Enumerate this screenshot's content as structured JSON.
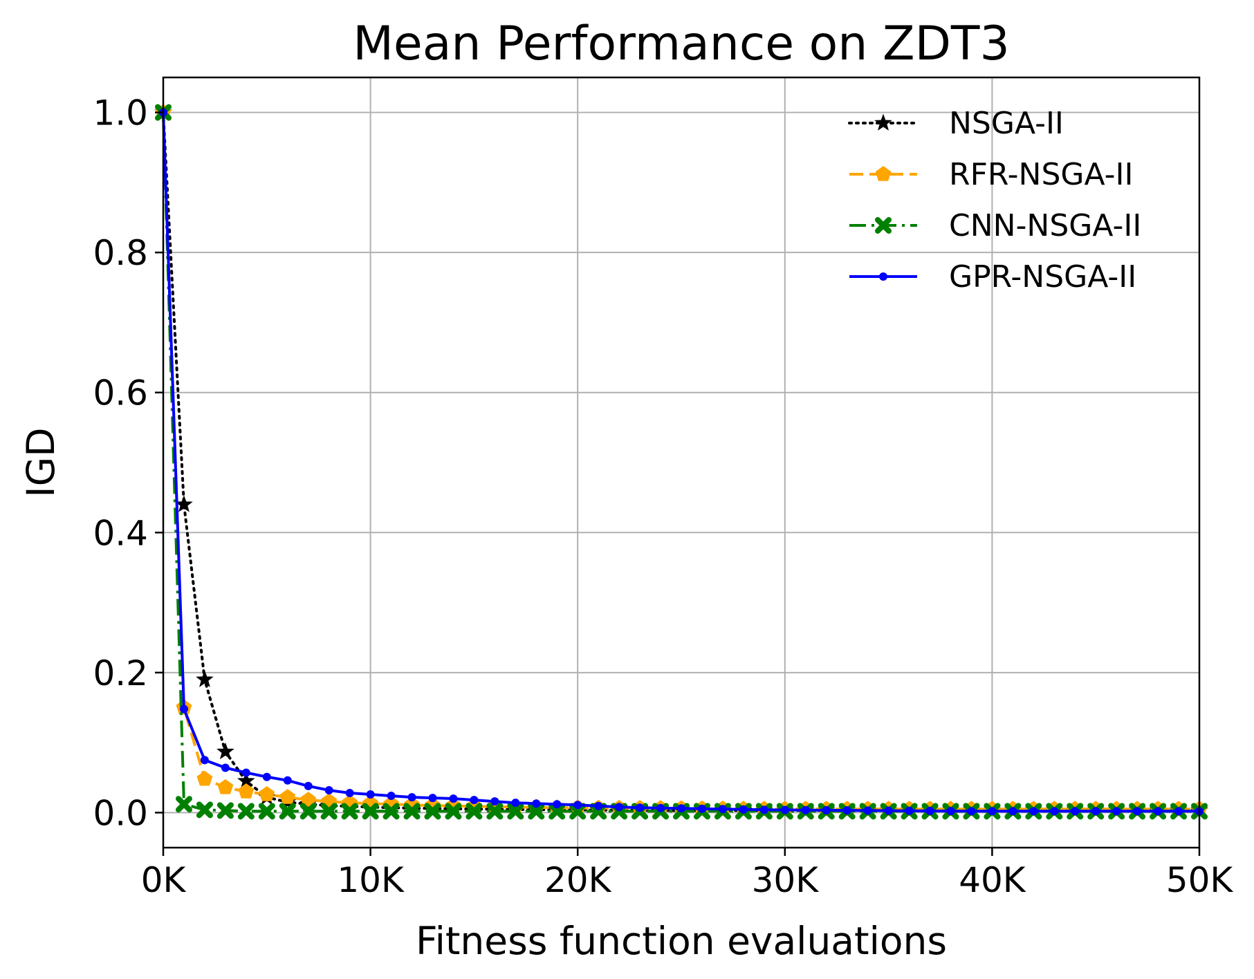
{
  "chart_data": {
    "type": "line",
    "title": "Mean Performance on ZDT3",
    "xlabel": "Fitness function evaluations",
    "ylabel": "IGD",
    "xlim": [
      0,
      50000
    ],
    "ylim": [
      -0.05,
      1.05
    ],
    "xticks": [
      0,
      10000,
      20000,
      30000,
      40000,
      50000
    ],
    "xtick_labels": [
      "0K",
      "10K",
      "20K",
      "30K",
      "40K",
      "50K"
    ],
    "yticks": [
      0.0,
      0.2,
      0.4,
      0.6,
      0.8,
      1.0
    ],
    "ytick_labels": [
      "0.0",
      "0.2",
      "0.4",
      "0.6",
      "0.8",
      "1.0"
    ],
    "grid": true,
    "legend_position": "top-right",
    "x": [
      0,
      1000,
      2000,
      3000,
      4000,
      5000,
      6000,
      7000,
      8000,
      9000,
      10000,
      11000,
      12000,
      13000,
      14000,
      15000,
      16000,
      17000,
      18000,
      19000,
      20000,
      21000,
      22000,
      23000,
      24000,
      25000,
      26000,
      27000,
      28000,
      29000,
      30000,
      31000,
      32000,
      33000,
      34000,
      35000,
      36000,
      37000,
      38000,
      39000,
      40000,
      41000,
      42000,
      43000,
      44000,
      45000,
      46000,
      47000,
      48000,
      49000,
      50000
    ],
    "series": [
      {
        "name": "NSGA-II",
        "color": "#000000",
        "line_style": "dotted",
        "marker": "star",
        "values": [
          1.0,
          0.44,
          0.19,
          0.087,
          0.045,
          0.022,
          0.015,
          0.012,
          0.01,
          0.009,
          0.008,
          0.007,
          0.0065,
          0.006,
          0.0055,
          0.005,
          0.0048,
          0.0045,
          0.0043,
          0.004,
          0.0038,
          0.0036,
          0.0035,
          0.0033,
          0.0032,
          0.003,
          0.003,
          0.003,
          0.003,
          0.003,
          0.003,
          0.003,
          0.003,
          0.003,
          0.003,
          0.003,
          0.003,
          0.003,
          0.003,
          0.003,
          0.003,
          0.003,
          0.003,
          0.003,
          0.003,
          0.003,
          0.003,
          0.003,
          0.003,
          0.003,
          0.003
        ]
      },
      {
        "name": "RFR-NSGA-II",
        "color": "#FFA500",
        "line_style": "dashed",
        "marker": "pentagon",
        "values": [
          1.0,
          0.15,
          0.048,
          0.036,
          0.03,
          0.026,
          0.022,
          0.018,
          0.016,
          0.014,
          0.013,
          0.012,
          0.011,
          0.01,
          0.0095,
          0.009,
          0.0085,
          0.008,
          0.0075,
          0.007,
          0.0068,
          0.0066,
          0.0064,
          0.0062,
          0.006,
          0.0058,
          0.0056,
          0.0054,
          0.0052,
          0.005,
          0.005,
          0.005,
          0.005,
          0.005,
          0.005,
          0.005,
          0.005,
          0.005,
          0.005,
          0.005,
          0.005,
          0.005,
          0.005,
          0.005,
          0.005,
          0.005,
          0.005,
          0.005,
          0.005,
          0.005,
          0.005
        ]
      },
      {
        "name": "CNN-NSGA-II",
        "color": "#008000",
        "line_style": "dashdot",
        "marker": "x-filled",
        "values": [
          1.0,
          0.012,
          0.004,
          0.003,
          0.002,
          0.002,
          0.002,
          0.002,
          0.002,
          0.002,
          0.002,
          0.002,
          0.002,
          0.002,
          0.002,
          0.002,
          0.002,
          0.002,
          0.002,
          0.002,
          0.002,
          0.002,
          0.002,
          0.002,
          0.002,
          0.002,
          0.002,
          0.002,
          0.002,
          0.002,
          0.002,
          0.002,
          0.002,
          0.002,
          0.002,
          0.002,
          0.002,
          0.002,
          0.002,
          0.002,
          0.002,
          0.002,
          0.002,
          0.002,
          0.002,
          0.002,
          0.002,
          0.002,
          0.002,
          0.002,
          0.002
        ]
      },
      {
        "name": "GPR-NSGA-II",
        "color": "#0000FF",
        "line_style": "solid",
        "marker": "dot",
        "values": [
          1.0,
          0.148,
          0.075,
          0.064,
          0.057,
          0.051,
          0.046,
          0.038,
          0.032,
          0.028,
          0.026,
          0.024,
          0.022,
          0.021,
          0.02,
          0.018,
          0.016,
          0.014,
          0.013,
          0.012,
          0.011,
          0.0095,
          0.008,
          0.007,
          0.0065,
          0.006,
          0.0055,
          0.005,
          0.0045,
          0.004,
          0.0038,
          0.0036,
          0.0034,
          0.0032,
          0.003,
          0.0028,
          0.0026,
          0.0024,
          0.0022,
          0.002,
          0.002,
          0.002,
          0.002,
          0.002,
          0.002,
          0.002,
          0.002,
          0.002,
          0.002,
          0.002,
          0.002
        ]
      }
    ]
  }
}
